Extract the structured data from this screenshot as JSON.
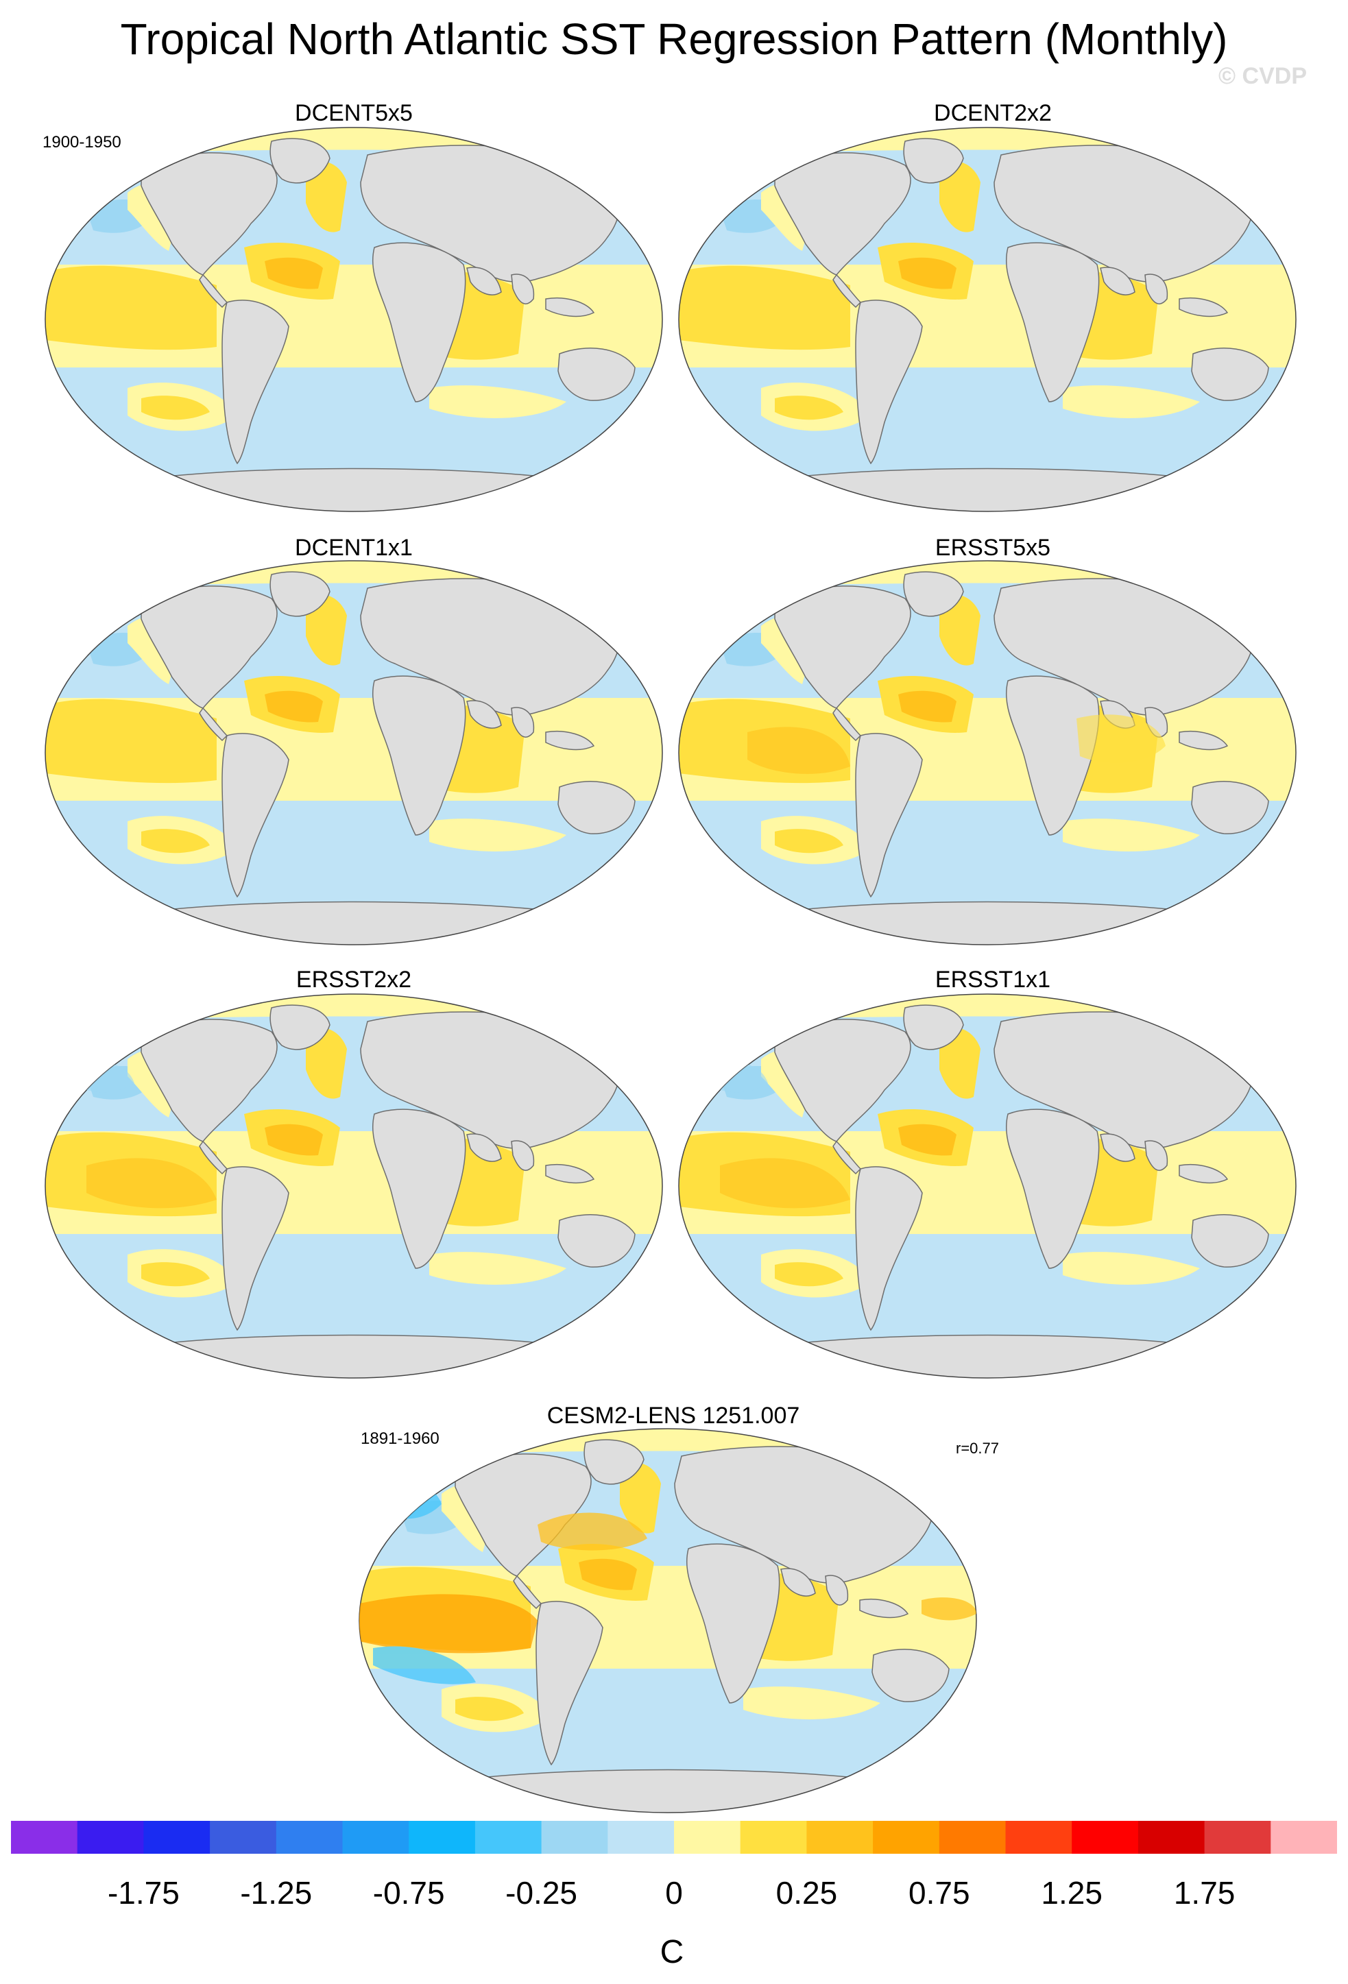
{
  "title": "Tropical North Atlantic SST Regression Pattern (Monthly)",
  "watermark": "© CVDP",
  "obs_period": "1900-1950",
  "model_period": "1891-1960",
  "correlation": "r=0.77",
  "panels": [
    {
      "name": "DCENT5x5"
    },
    {
      "name": "DCENT2x2"
    },
    {
      "name": "DCENT1x1"
    },
    {
      "name": "ERSST5x5"
    },
    {
      "name": "ERSST2x2"
    },
    {
      "name": "ERSST1x1"
    },
    {
      "name": "CESM2-LENS 1251.007"
    }
  ],
  "colorbar": {
    "units": "C",
    "labels": [
      "-1.75",
      "-1.25",
      "-0.75",
      "-0.25",
      "0",
      "0.25",
      "0.75",
      "1.25",
      "1.75"
    ],
    "colors": [
      "#8a2ee8",
      "#3a1cf0",
      "#1a2cf2",
      "#3a5ce0",
      "#2f7ff0",
      "#1f9bf5",
      "#0fb6fb",
      "#45c6fb",
      "#9dd7f3",
      "#bfe3f6",
      "#fff8a3",
      "#ffe040",
      "#ffc21c",
      "#ffa300",
      "#ff7a00",
      "#ff4010",
      "#ff0000",
      "#d80000",
      "#e13a3a",
      "#ffb3b8"
    ]
  },
  "chart_data": {
    "type": "map",
    "projection": "Robinson-like global",
    "variable": "SST regression",
    "units": "C",
    "contour_interval_labels": [
      -1.75,
      -1.25,
      -0.75,
      -0.25,
      0,
      0.25,
      0.75,
      1.25,
      1.75
    ]
  }
}
